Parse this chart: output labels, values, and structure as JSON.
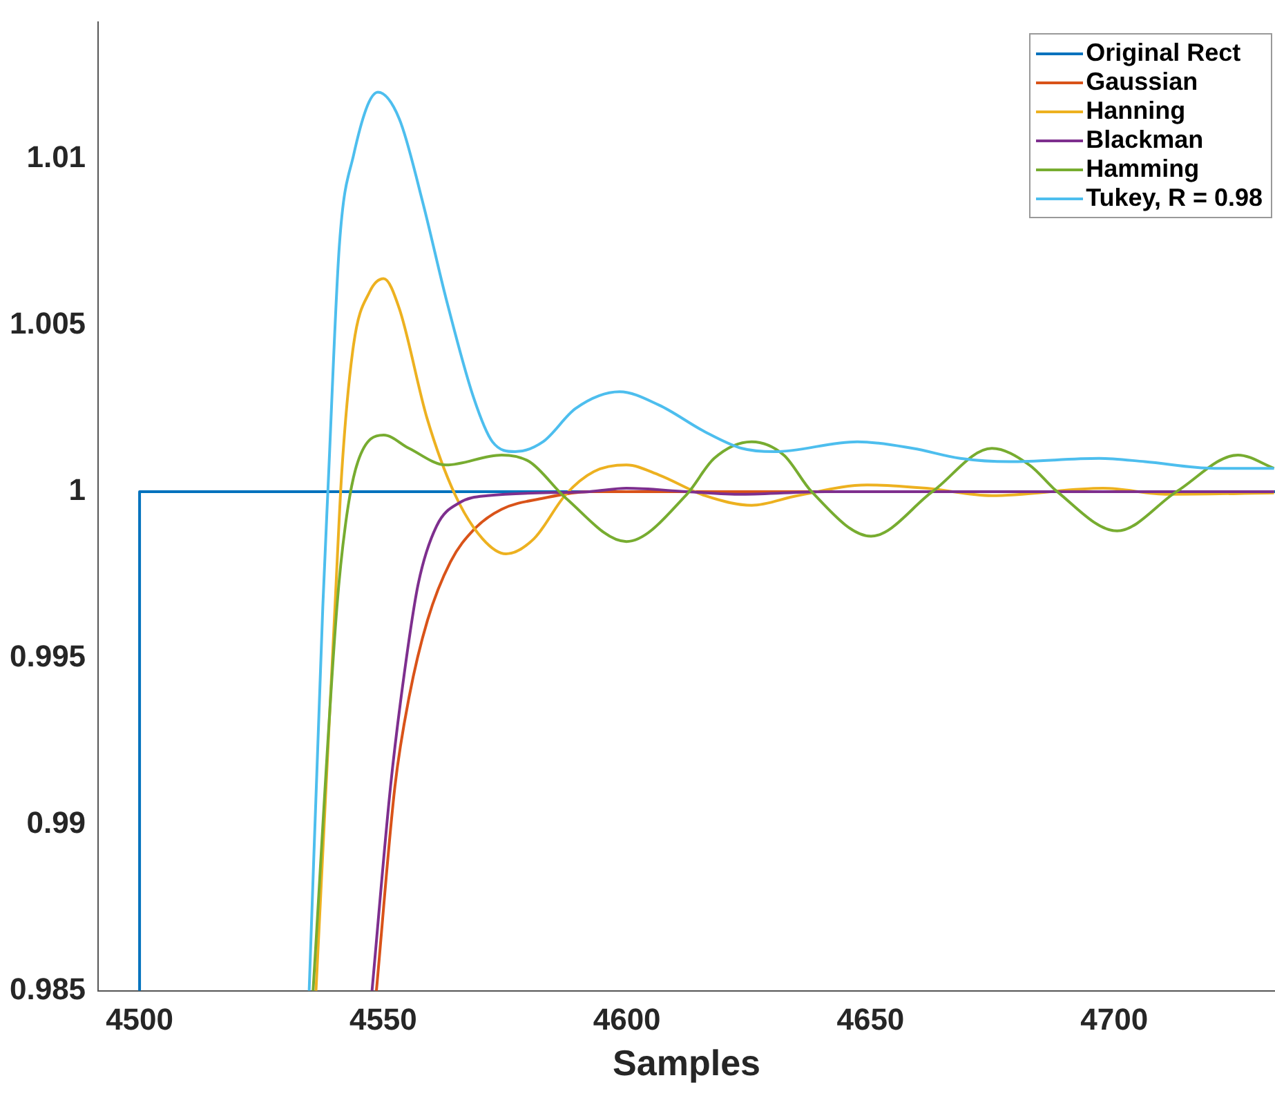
{
  "chart_data": {
    "type": "line",
    "xlabel": "Samples",
    "xlim": [
      4491.5,
      4733
    ],
    "ylim": [
      0.985,
      1.0141
    ],
    "xticks": [
      4500,
      4550,
      4600,
      4650,
      4700
    ],
    "yticks": [
      0.985,
      0.99,
      0.995,
      1,
      1.005,
      1.01
    ],
    "grid": false,
    "legend": "top right",
    "marker": "none",
    "line_style": "solid",
    "series": [
      {
        "name": "Original Rect",
        "color": "#0072bd",
        "x": [
          4500,
          4500,
          4733
        ],
        "values": [
          0.985,
          1,
          1
        ]
      },
      {
        "name": "Gaussian",
        "color": "#d95319",
        "x": [
          4548.6,
          4552.4,
          4555.3,
          4559.1,
          4563.8,
          4568.6,
          4574.3,
          4582.8,
          4592.3,
          4732.8
        ],
        "values": [
          0.985,
          0.99114,
          0.99382,
          0.99614,
          0.99789,
          0.99886,
          0.99947,
          0.9998,
          1.0,
          1.0
        ]
      },
      {
        "name": "Hanning",
        "color": "#edb120",
        "x": [
          4536.2,
          4540.1,
          4541.5,
          4543.9,
          4547.2,
          4550.1,
          4553.3,
          4559.0,
          4564.7,
          4570.4,
          4575.2,
          4580.9,
          4587.5,
          4593.2,
          4599.9,
          4606.6,
          4616.0,
          4625.6,
          4635.0,
          4649.3,
          4661.5,
          4674.9,
          4697.7,
          4711.1,
          4732.8
        ],
        "values": [
          0.985,
          0.99654,
          1.0006,
          1.0044,
          1.006,
          1.0064,
          1.0055,
          1.0022,
          0.99992,
          0.99858,
          0.99813,
          0.99858,
          0.99992,
          1.0006,
          1.0008,
          1.0005,
          0.99988,
          0.99959,
          0.99988,
          1.0002,
          1.0001,
          0.99988,
          1.0001,
          0.99992,
          0.99996
        ]
      },
      {
        "name": "Blackman",
        "color": "#7e2f8e",
        "x": [
          4547.7,
          4551.5,
          4554.3,
          4557.2,
          4561.0,
          4565.7,
          4571.4,
          4592.3,
          4599.9,
          4612.3,
          4623.6,
          4640.7,
          4732.8
        ],
        "values": [
          0.985,
          0.99114,
          0.99451,
          0.99724,
          0.99898,
          0.99967,
          0.99988,
          1.0,
          1.0001,
          1.0,
          0.99992,
          1.0,
          1.0
        ]
      },
      {
        "name": "Hamming",
        "color": "#77ac30",
        "x": [
          4535.6,
          4540.5,
          4542.5,
          4544.8,
          4550.1,
          4555.3,
          4562.9,
          4574.3,
          4580.0,
          4587.5,
          4599.9,
          4612.3,
          4617.9,
          4625.6,
          4632.2,
          4637.9,
          4650.1,
          4662.7,
          4674.9,
          4682.6,
          4688.3,
          4700.6,
          4712.8,
          4725.4,
          4732.8
        ],
        "values": [
          0.985,
          0.99654,
          0.99927,
          1.0009,
          1.0017,
          1.0013,
          1.0008,
          1.0011,
          1.0009,
          0.9998,
          0.9985,
          0.99992,
          1.001,
          1.0015,
          1.0011,
          1.0,
          0.99866,
          1.0,
          1.0013,
          1.0008,
          1.0,
          0.99882,
          1.0,
          1.0011,
          1.0007
        ]
      },
      {
        "name": "Tukey, R = 0.98",
        "color": "#4dbeee",
        "x": [
          4534.8,
          4537.6,
          4538.7,
          4541.0,
          4543.9,
          4548.9,
          4553.3,
          4558.1,
          4562.9,
          4568.6,
          4572.4,
          4577.1,
          4582.8,
          4589.5,
          4598.5,
          4606.6,
          4616.0,
          4623.6,
          4630.2,
          4647.3,
          4658.7,
          4668.4,
          4678.6,
          4696.9,
          4706.3,
          4720.5,
          4732.8
        ],
        "values": [
          0.985,
          0.99654,
          1.0002,
          1.0074,
          1.0101,
          1.012,
          1.0112,
          1.0087,
          1.0058,
          1.0028,
          1.0015,
          1.0012,
          1.0015,
          1.0025,
          1.003,
          1.0026,
          1.0018,
          1.0013,
          1.0012,
          1.0015,
          1.0013,
          1.001,
          1.0009,
          1.001,
          1.0009,
          1.0007,
          1.0007
        ]
      }
    ]
  }
}
